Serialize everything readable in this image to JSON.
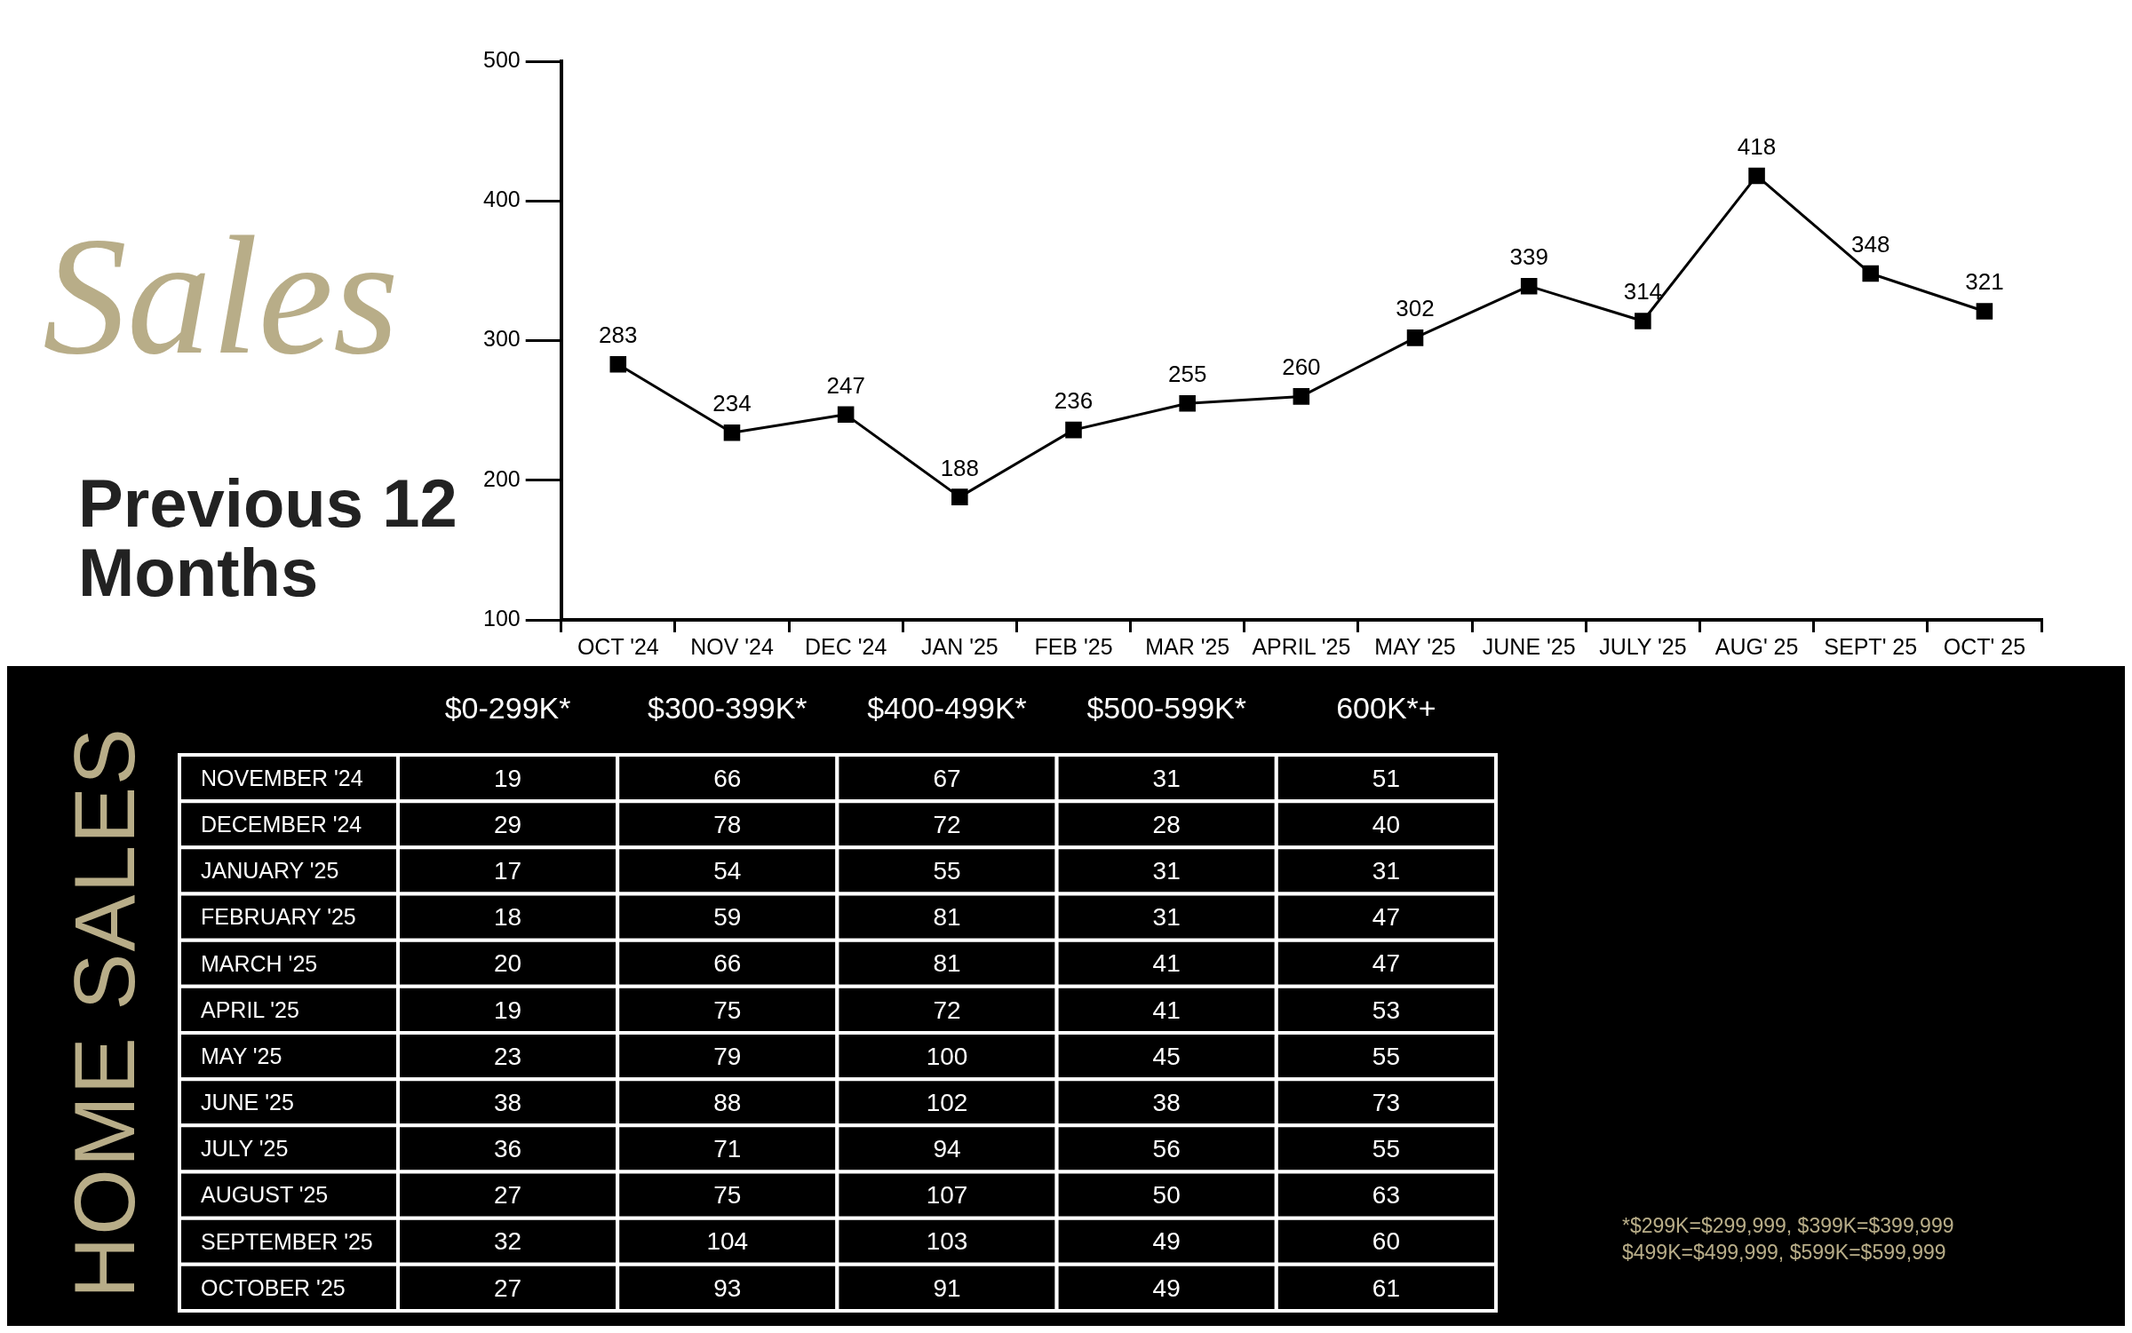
{
  "chart_data": [
    {
      "type": "line",
      "title": "Sales",
      "subtitle": "Previous 12 Months",
      "categories": [
        "OCT '24",
        "NOV '24",
        "DEC '24",
        "JAN '25",
        "FEB '25",
        "MAR '25",
        "APRIL '25",
        "MAY '25",
        "JUNE '25",
        "JULY '25",
        "AUG' 25",
        "SEPT' 25",
        "OCT' 25"
      ],
      "values": [
        283,
        234,
        247,
        188,
        236,
        255,
        260,
        302,
        339,
        314,
        418,
        348,
        321
      ],
      "color": "#000000",
      "ylim": [
        100,
        500
      ],
      "yticks": [
        100,
        200,
        300,
        400,
        500
      ],
      "marker": "square",
      "data_labels": true
    },
    {
      "type": "heatmap",
      "title": "HOME SALES",
      "categories": [
        "$0-299K*",
        "$300-399K*",
        "$400-499K*",
        "$500-599K*",
        "600K*+"
      ],
      "y_categories": [
        "NOVEMBER '24",
        "DECEMBER '24",
        "JANUARY '25",
        "FEBRUARY '25",
        "MARCH '25",
        "APRIL '25",
        "MAY '25",
        "JUNE '25",
        "JULY '25",
        "AUGUST '25",
        "SEPTEMBER '25",
        "OCTOBER '25"
      ],
      "cells": [
        [
          19,
          66,
          67,
          31,
          51
        ],
        [
          29,
          78,
          72,
          28,
          40
        ],
        [
          17,
          54,
          55,
          31,
          31
        ],
        [
          18,
          59,
          81,
          31,
          47
        ],
        [
          20,
          66,
          81,
          41,
          47
        ],
        [
          19,
          75,
          72,
          41,
          53
        ],
        [
          23,
          79,
          100,
          45,
          55
        ],
        [
          38,
          88,
          102,
          38,
          73
        ],
        [
          36,
          71,
          94,
          56,
          55
        ],
        [
          27,
          75,
          107,
          50,
          63
        ],
        [
          32,
          104,
          103,
          49,
          60
        ],
        [
          27,
          93,
          91,
          49,
          61
        ]
      ],
      "data_labels": true,
      "annotations": [
        "*$299K=$299,999, $399K=$399,999",
        "$499K=$499,999, $599K=$599,999"
      ]
    }
  ]
}
